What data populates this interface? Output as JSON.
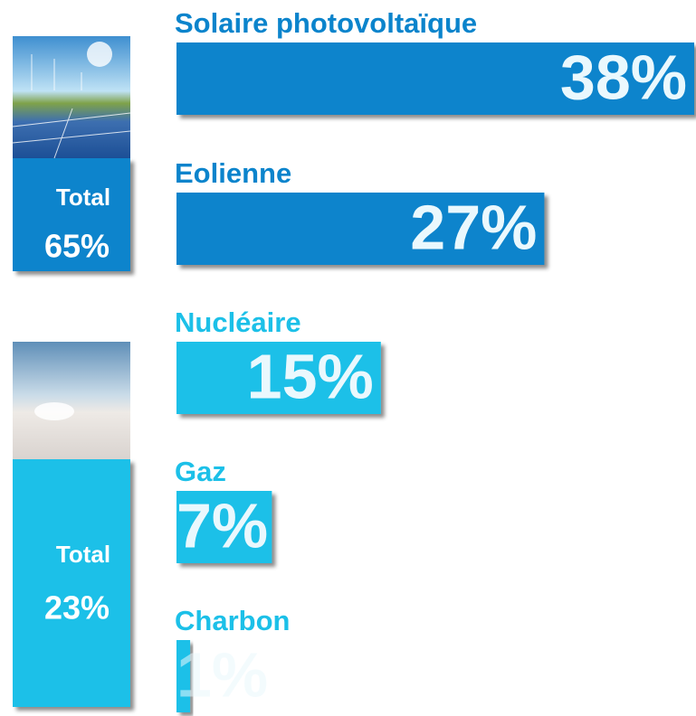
{
  "chart_data": {
    "type": "bar",
    "groups": [
      {
        "label": "Total",
        "total": 65,
        "total_label": "65%",
        "color": "#0b84cc",
        "categories": [
          "Solaire photovoltaïque",
          "Eolienne"
        ],
        "values": [
          38,
          27
        ],
        "value_labels": [
          "38%",
          "27%"
        ]
      },
      {
        "label": "Total",
        "total": 23,
        "total_label": "23%",
        "color": "#1cc0e8",
        "categories": [
          "Nucléaire",
          "Gaz",
          "Charbon"
        ],
        "values": [
          15,
          7,
          1
        ],
        "value_labels": [
          "15%",
          "7%",
          "1%"
        ]
      }
    ]
  }
}
